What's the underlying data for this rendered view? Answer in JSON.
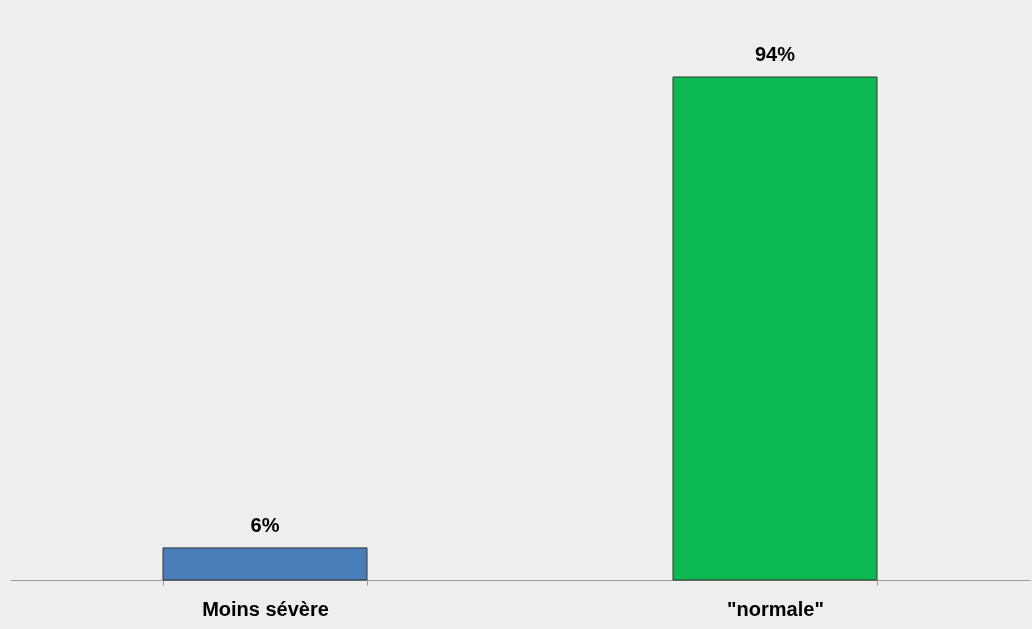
{
  "chart_data": {
    "type": "bar",
    "categories": [
      "Moins sévère",
      "\"normale\""
    ],
    "values": [
      6,
      94
    ],
    "colors": [
      "#4a7ebb",
      "#0cb852"
    ],
    "value_labels": [
      "6%",
      "94%"
    ]
  }
}
